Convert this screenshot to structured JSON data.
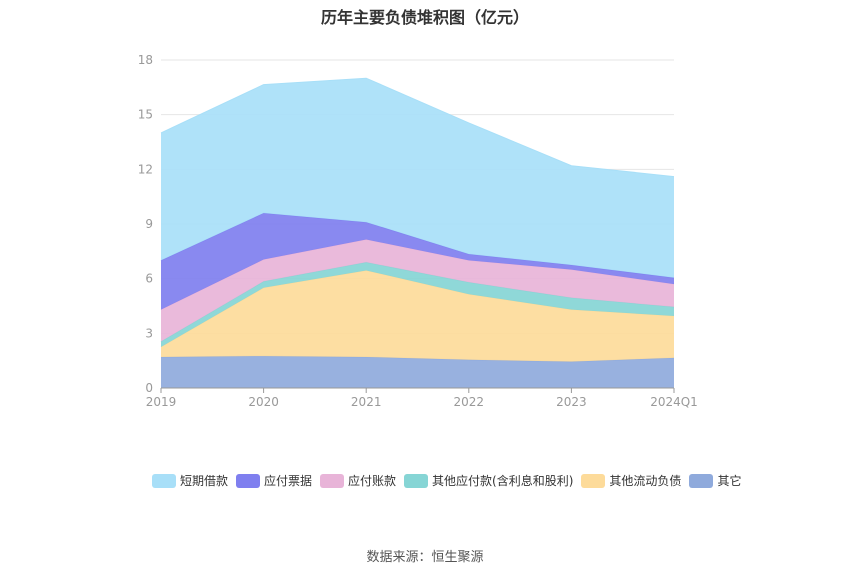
{
  "source": "数据来源：恒生聚源",
  "chart_data": {
    "type": "area",
    "stacked": true,
    "title": "历年主要负债堆积图（亿元）",
    "categories": [
      "2019",
      "2020",
      "2021",
      "2022",
      "2023",
      "2024Q1"
    ],
    "y_ticks": [
      "0",
      "3",
      "6",
      "9",
      "12",
      "15",
      "18"
    ],
    "ylim": [
      0,
      18
    ],
    "grid": true,
    "legend_position": "bottom",
    "series": [
      {
        "name": "其它",
        "color": "#8faadc",
        "values": [
          1.7,
          1.75,
          1.7,
          1.55,
          1.45,
          1.65
        ]
      },
      {
        "name": "其他流动负债",
        "color": "#fddb9a",
        "values": [
          0.55,
          3.75,
          4.75,
          3.6,
          2.85,
          2.3
        ]
      },
      {
        "name": "其他应付款(含利息和股利)",
        "color": "#86d5d5",
        "values": [
          0.3,
          0.35,
          0.45,
          0.65,
          0.65,
          0.5
        ]
      },
      {
        "name": "应付账款",
        "color": "#e8b4d8",
        "values": [
          1.75,
          1.2,
          1.25,
          1.2,
          1.55,
          1.25
        ]
      },
      {
        "name": "应付票据",
        "color": "#7f7fef",
        "values": [
          2.7,
          2.55,
          0.95,
          0.35,
          0.25,
          0.35
        ]
      },
      {
        "name": "短期借款",
        "color": "#a8dff8",
        "values": [
          7.0,
          7.05,
          7.9,
          7.2,
          5.45,
          5.55
        ]
      }
    ],
    "legend_order": [
      "短期借款",
      "应付票据",
      "应付账款",
      "其他应付款(含利息和股利)",
      "其他流动负债",
      "其它"
    ]
  }
}
